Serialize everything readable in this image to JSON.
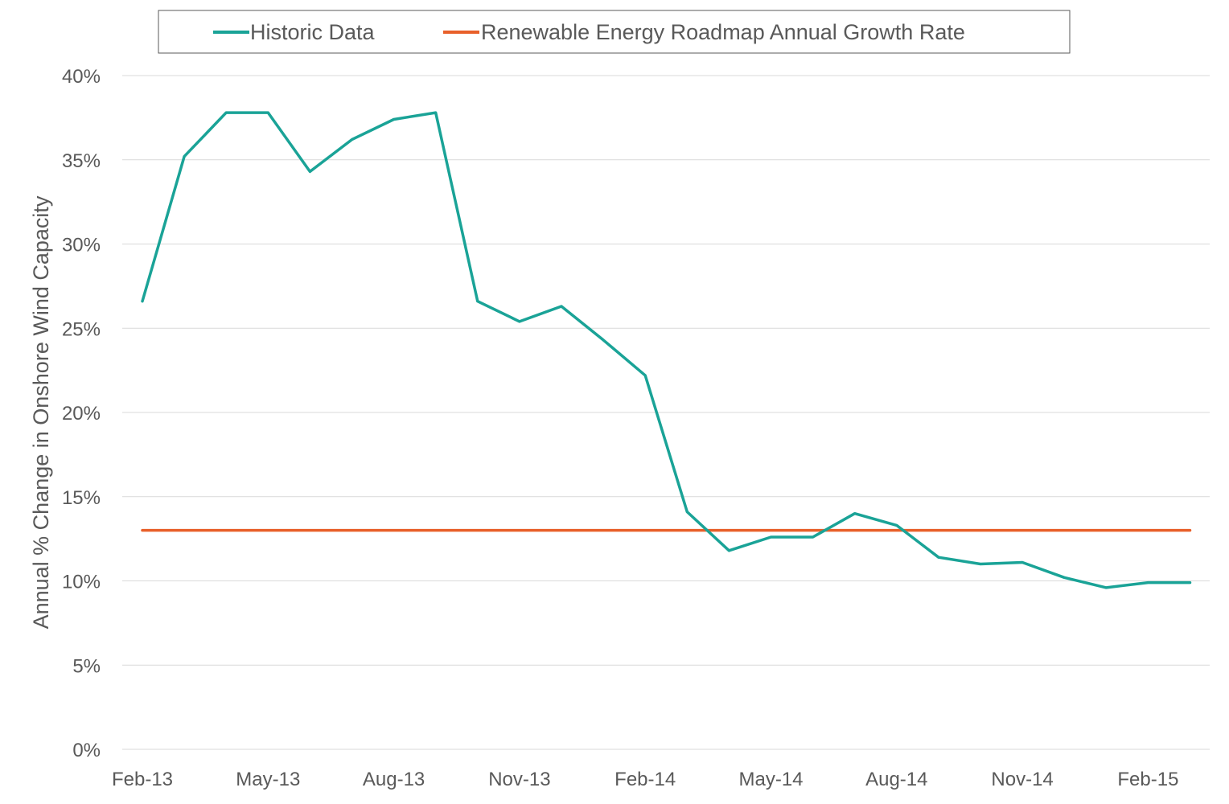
{
  "chart_data": {
    "type": "line",
    "title": "",
    "xlabel": "",
    "ylabel": "Annual % Change in Onshore Wind Capacity",
    "ylim": [
      0,
      40
    ],
    "y_ticks": [
      "0%",
      "5%",
      "10%",
      "15%",
      "20%",
      "25%",
      "30%",
      "35%",
      "40%"
    ],
    "x_tick_labels": [
      "Feb-13",
      "May-13",
      "Aug-13",
      "Nov-13",
      "Feb-14",
      "May-14",
      "Aug-14",
      "Nov-14",
      "Feb-15"
    ],
    "x": [
      "Feb-13",
      "Mar-13",
      "Apr-13",
      "May-13",
      "Jun-13",
      "Jul-13",
      "Aug-13",
      "Sep-13",
      "Oct-13",
      "Nov-13",
      "Dec-13",
      "Jan-14",
      "Feb-14",
      "Mar-14",
      "Apr-14",
      "May-14",
      "Jun-14",
      "Jul-14",
      "Aug-14",
      "Sep-14",
      "Oct-14",
      "Nov-14",
      "Dec-14",
      "Jan-15",
      "Feb-15",
      "Mar-15"
    ],
    "grid": true,
    "legend_position": "top",
    "series": [
      {
        "name": "Historic Data",
        "color": "#1aa397",
        "values": [
          26.6,
          35.2,
          37.8,
          37.8,
          34.3,
          36.2,
          37.4,
          37.8,
          26.6,
          25.4,
          26.3,
          24.3,
          22.2,
          14.1,
          11.8,
          12.6,
          12.6,
          14.0,
          13.3,
          11.4,
          11.0,
          11.1,
          10.2,
          9.6,
          9.9,
          9.9
        ]
      },
      {
        "name": "Renewable Energy Roadmap Annual Growth Rate",
        "color": "#e8602a",
        "values": [
          13.0,
          13.0,
          13.0,
          13.0,
          13.0,
          13.0,
          13.0,
          13.0,
          13.0,
          13.0,
          13.0,
          13.0,
          13.0,
          13.0,
          13.0,
          13.0,
          13.0,
          13.0,
          13.0,
          13.0,
          13.0,
          13.0,
          13.0,
          13.0,
          13.0,
          13.0
        ]
      }
    ]
  }
}
